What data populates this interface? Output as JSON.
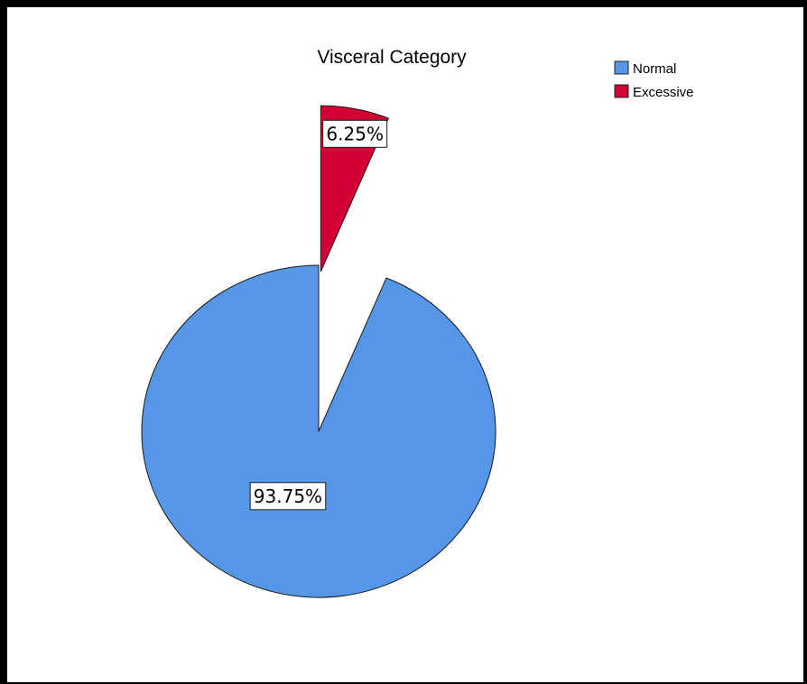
{
  "chart_data": {
    "type": "pie",
    "title": "Visceral Category",
    "categories": [
      "Normal",
      "Excessive"
    ],
    "values": [
      93.75,
      6.25
    ],
    "labels": [
      "93.75%",
      "6.25%"
    ],
    "colors": [
      "#5596E6",
      "#D30033"
    ],
    "exploded": [
      "Excessive"
    ],
    "legend_position": "top-right",
    "legend": [
      {
        "label": "Normal",
        "color": "#5596E6"
      },
      {
        "label": "Excessive",
        "color": "#D30033"
      }
    ]
  }
}
